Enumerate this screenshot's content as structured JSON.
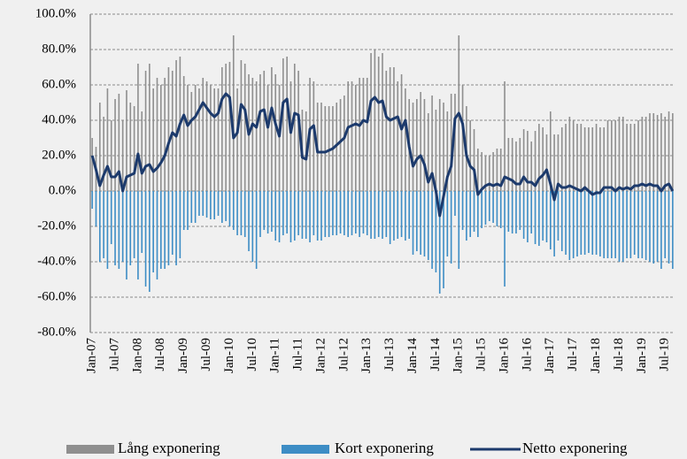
{
  "chart_data": {
    "type": "bar-line",
    "categories": [
      "Jan-07",
      null,
      null,
      null,
      null,
      null,
      "Jul-07",
      null,
      null,
      null,
      null,
      null,
      "Jan-08",
      null,
      null,
      null,
      null,
      null,
      "Jul-08",
      null,
      null,
      null,
      null,
      null,
      "Jan-09",
      null,
      null,
      null,
      null,
      null,
      "Jul-09",
      null,
      null,
      null,
      null,
      null,
      "Jan-10",
      null,
      null,
      null,
      null,
      null,
      "Jul-10",
      null,
      null,
      null,
      null,
      null,
      "Jan-11",
      null,
      null,
      null,
      null,
      null,
      "Jul-11",
      null,
      null,
      null,
      null,
      null,
      "Jan-12",
      null,
      null,
      null,
      null,
      null,
      "Jul-12",
      null,
      null,
      null,
      null,
      null,
      "Jan-13",
      null,
      null,
      null,
      null,
      null,
      "Jul-13",
      null,
      null,
      null,
      null,
      null,
      "Jan-14",
      null,
      null,
      null,
      null,
      null,
      "Jul-14",
      null,
      null,
      null,
      null,
      null,
      "Jan-15",
      null,
      null,
      null,
      null,
      null,
      "Jul-15",
      null,
      null,
      null,
      null,
      null,
      "Jan-16",
      null,
      null,
      null,
      null,
      null,
      "Jul-16",
      null,
      null,
      null,
      null,
      null,
      "Jan-17",
      null,
      null,
      null,
      null,
      null,
      "Jul-17",
      null,
      null,
      null,
      null,
      null,
      "Jan-18",
      null,
      null,
      null,
      null,
      null,
      "Jul-18",
      null,
      null,
      null,
      null,
      null,
      "Jan-19",
      null,
      null,
      null,
      null,
      null,
      "Jul-19",
      null,
      null
    ],
    "series": [
      {
        "name": "Lång exponering",
        "kind": "bar",
        "color": "#8f8f8f",
        "values": [
          30,
          25,
          50,
          42,
          58,
          40,
          52,
          55,
          40,
          57,
          50,
          48,
          72,
          45,
          68,
          72,
          58,
          64,
          60,
          64,
          70,
          68,
          74,
          76,
          65,
          60,
          56,
          60,
          58,
          64,
          62,
          60,
          58,
          58,
          70,
          72,
          73,
          88,
          58,
          74,
          72,
          66,
          64,
          62,
          66,
          68,
          60,
          70,
          66,
          60,
          75,
          76,
          62,
          72,
          68,
          46,
          45,
          64,
          62,
          50,
          50,
          48,
          48,
          48,
          50,
          52,
          54,
          62,
          62,
          60,
          64,
          64,
          64,
          78,
          80,
          76,
          78,
          68,
          70,
          70,
          62,
          66,
          58,
          52,
          50,
          52,
          56,
          52,
          44,
          54,
          46,
          52,
          50,
          45,
          55,
          55,
          88,
          60,
          48,
          40,
          35,
          24,
          22,
          20,
          20,
          22,
          24,
          24,
          62,
          30,
          30,
          28,
          30,
          35,
          34,
          28,
          34,
          38,
          36,
          32,
          45,
          32,
          32,
          36,
          38,
          42,
          40,
          38,
          38,
          36,
          36,
          36,
          38,
          36,
          36,
          40,
          40,
          40,
          42,
          42,
          38,
          38,
          38,
          40,
          42,
          42,
          44,
          44,
          43,
          44,
          42,
          45,
          44
        ]
      },
      {
        "name": "Kort exponering",
        "kind": "bar",
        "color": "#3d8dc5",
        "values": [
          -10,
          -20,
          -40,
          -38,
          -44,
          -30,
          -42,
          -44,
          -40,
          -50,
          -42,
          -38,
          -50,
          -35,
          -54,
          -57,
          -46,
          -50,
          -44,
          -44,
          -42,
          -36,
          -42,
          -38,
          -22,
          -22,
          -18,
          -18,
          -14,
          -14,
          -15,
          -16,
          -16,
          -14,
          -18,
          -17,
          -20,
          -22,
          -25,
          -25,
          -26,
          -34,
          -40,
          -44,
          -26,
          -22,
          -24,
          -23,
          -28,
          -29,
          -25,
          -24,
          -29,
          -28,
          -25,
          -27,
          -27,
          -29,
          -25,
          -28,
          -28,
          -26,
          -26,
          -25,
          -25,
          -24,
          -25,
          -26,
          -25,
          -24,
          -26,
          -24,
          -25,
          -27,
          -27,
          -26,
          -27,
          -26,
          -30,
          -28,
          -27,
          -26,
          -28,
          -27,
          -36,
          -34,
          -36,
          -37,
          -39,
          -44,
          -46,
          -58,
          -55,
          -37,
          -41,
          -14,
          -44,
          -22,
          -28,
          -26,
          -23,
          -26,
          -21,
          -19,
          -17,
          -18,
          -20,
          -21,
          -54,
          -23,
          -24,
          -24,
          -22,
          -27,
          -29,
          -24,
          -30,
          -31,
          -28,
          -29,
          -33,
          -37,
          -28,
          -34,
          -36,
          -39,
          -38,
          -37,
          -36,
          -36,
          -35,
          -36,
          -36,
          -37,
          -38,
          -38,
          -38,
          -38,
          -40,
          -40,
          -38,
          -38,
          -36,
          -38,
          -38,
          -39,
          -40,
          -41,
          -40,
          -44,
          -38,
          -41,
          -44
        ]
      },
      {
        "name": "Netto exponering",
        "kind": "line",
        "color": "#1c3a6c",
        "values": [
          20,
          12,
          3,
          9,
          14,
          8,
          8,
          11,
          0,
          8,
          9,
          10,
          21,
          10,
          14,
          15,
          11,
          13,
          16,
          20,
          27,
          33,
          31,
          38,
          43,
          37,
          40,
          42,
          46,
          50,
          47,
          44,
          42,
          44,
          52,
          55,
          53,
          30,
          33,
          49,
          46,
          32,
          38,
          36,
          45,
          46,
          36,
          47,
          38,
          31,
          50,
          52,
          33,
          44,
          43,
          19,
          18,
          35,
          37,
          22,
          22,
          22,
          23,
          24,
          26,
          28,
          30,
          36,
          37,
          38,
          37,
          40,
          39,
          51,
          53,
          50,
          51,
          42,
          40,
          41,
          42,
          35,
          40,
          25,
          14,
          18,
          20,
          15,
          5,
          10,
          0,
          -14,
          -3,
          8,
          14,
          41,
          44,
          38,
          20,
          14,
          12,
          -2,
          1,
          3,
          4,
          3,
          4,
          3,
          8,
          7,
          6,
          4,
          4,
          8,
          5,
          5,
          3,
          7,
          9,
          12,
          4,
          -5,
          4,
          2,
          2,
          3,
          2,
          1,
          0,
          2,
          0,
          -2,
          -1,
          -1,
          2,
          2,
          2,
          0,
          2,
          1,
          2,
          1,
          3,
          3,
          4,
          3,
          4,
          3,
          3,
          0,
          3,
          4,
          0
        ]
      }
    ],
    "ylim": [
      -80,
      100
    ],
    "yticks": [
      {
        "value": -80,
        "label": "-80.0%"
      },
      {
        "value": -60,
        "label": "-60.0%"
      },
      {
        "value": -40,
        "label": "-40.0%"
      },
      {
        "value": -20,
        "label": "-20.0%"
      },
      {
        "value": 0,
        "label": "0.0%"
      },
      {
        "value": 20,
        "label": "20.0%"
      },
      {
        "value": 40,
        "label": "40.0%"
      },
      {
        "value": 60,
        "label": "60.0%"
      },
      {
        "value": 80,
        "label": "80.0%"
      },
      {
        "value": 100,
        "label": "100.0%"
      }
    ],
    "grid": true,
    "legend": "bottom"
  }
}
